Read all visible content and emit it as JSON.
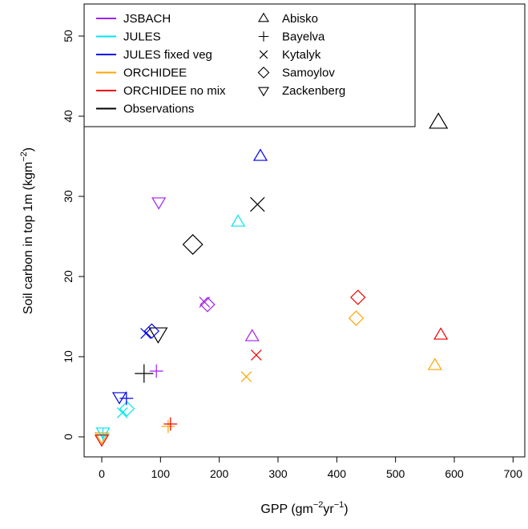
{
  "chart_data": {
    "type": "scatter",
    "xlabel": {
      "main": "GPP (gm",
      "sup1": "−2",
      "mid": "yr",
      "sup2": "−1",
      "end": ")"
    },
    "ylabel": {
      "main": "Soil carbon in top 1m (kgm",
      "sup": "−2",
      "end": ")"
    },
    "xlim": [
      -30,
      720
    ],
    "ylim": [
      -2.5,
      54
    ],
    "xticks": [
      0,
      100,
      200,
      300,
      400,
      500,
      600,
      700
    ],
    "yticks": [
      0,
      10,
      20,
      30,
      40,
      50
    ],
    "grid": false,
    "legend_position": "top-left",
    "model_legend": [
      {
        "name": "JSBACH",
        "color": "#a020f0"
      },
      {
        "name": "JULES",
        "color": "#00e5ee"
      },
      {
        "name": "JULES fixed veg",
        "color": "#0000ee"
      },
      {
        "name": "ORCHIDEE",
        "color": "#ffa500"
      },
      {
        "name": "ORCHIDEE no mix",
        "color": "#ee0000"
      },
      {
        "name": "Observations",
        "color": "#000000"
      }
    ],
    "site_legend": [
      {
        "name": "Abisko",
        "marker": "triangle-up"
      },
      {
        "name": "Bayelva",
        "marker": "plus"
      },
      {
        "name": "Kytalyk",
        "marker": "cross"
      },
      {
        "name": "Samoylov",
        "marker": "diamond"
      },
      {
        "name": "Zackenberg",
        "marker": "triangle-down"
      }
    ],
    "points": [
      {
        "source": "Observations",
        "site": "Abisko",
        "x": 573,
        "y": 39.2
      },
      {
        "source": "Observations",
        "site": "Kytalyk",
        "x": 265,
        "y": 29.0
      },
      {
        "source": "Observations",
        "site": "Samoylov",
        "x": 155,
        "y": 24.0
      },
      {
        "source": "Observations",
        "site": "Zackenberg",
        "x": 96,
        "y": 12.9
      },
      {
        "source": "Observations",
        "site": "Bayelva",
        "x": 72,
        "y": 7.9
      },
      {
        "source": "JSBACH",
        "site": "Zackenberg",
        "x": 97,
        "y": 29.3
      },
      {
        "source": "JSBACH",
        "site": "Kytalyk",
        "x": 175,
        "y": 16.8
      },
      {
        "source": "JSBACH",
        "site": "Samoylov",
        "x": 180,
        "y": 16.5
      },
      {
        "source": "JSBACH",
        "site": "Abisko",
        "x": 256,
        "y": 12.5
      },
      {
        "source": "JSBACH",
        "site": "Bayelva",
        "x": 93,
        "y": 8.2
      },
      {
        "source": "JULES",
        "site": "Abisko",
        "x": 232,
        "y": 26.8
      },
      {
        "source": "JULES",
        "site": "Samoylov",
        "x": 43,
        "y": 3.5
      },
      {
        "source": "JULES",
        "site": "Kytalyk",
        "x": 35,
        "y": 3.0
      },
      {
        "source": "JULES",
        "site": "Zackenberg",
        "x": 2,
        "y": 0.6
      },
      {
        "source": "JULES",
        "site": "Bayelva",
        "x": 2,
        "y": 0.3
      },
      {
        "source": "JULES fixed veg",
        "site": "Abisko",
        "x": 270,
        "y": 35.0
      },
      {
        "source": "JULES fixed veg",
        "site": "Kytalyk",
        "x": 75,
        "y": 12.9
      },
      {
        "source": "JULES fixed veg",
        "site": "Samoylov",
        "x": 85,
        "y": 13.2
      },
      {
        "source": "JULES fixed veg",
        "site": "Zackenberg",
        "x": 30,
        "y": 5.0
      },
      {
        "source": "JULES fixed veg",
        "site": "Bayelva",
        "x": 42,
        "y": 4.8
      },
      {
        "source": "ORCHIDEE",
        "site": "Samoylov",
        "x": 433,
        "y": 14.8
      },
      {
        "source": "ORCHIDEE",
        "site": "Abisko",
        "x": 567,
        "y": 8.9
      },
      {
        "source": "ORCHIDEE",
        "site": "Kytalyk",
        "x": 246,
        "y": 7.5
      },
      {
        "source": "ORCHIDEE",
        "site": "Bayelva",
        "x": 113,
        "y": 1.3
      },
      {
        "source": "ORCHIDEE",
        "site": "Zackenberg",
        "x": 0,
        "y": 0.0
      },
      {
        "source": "ORCHIDEE no mix",
        "site": "Samoylov",
        "x": 436,
        "y": 17.4
      },
      {
        "source": "ORCHIDEE no mix",
        "site": "Abisko",
        "x": 577,
        "y": 12.7
      },
      {
        "source": "ORCHIDEE no mix",
        "site": "Kytalyk",
        "x": 263,
        "y": 10.2
      },
      {
        "source": "ORCHIDEE no mix",
        "site": "Bayelva",
        "x": 117,
        "y": 1.6
      },
      {
        "source": "ORCHIDEE no mix",
        "site": "Zackenberg",
        "x": 0,
        "y": -0.3
      }
    ]
  }
}
